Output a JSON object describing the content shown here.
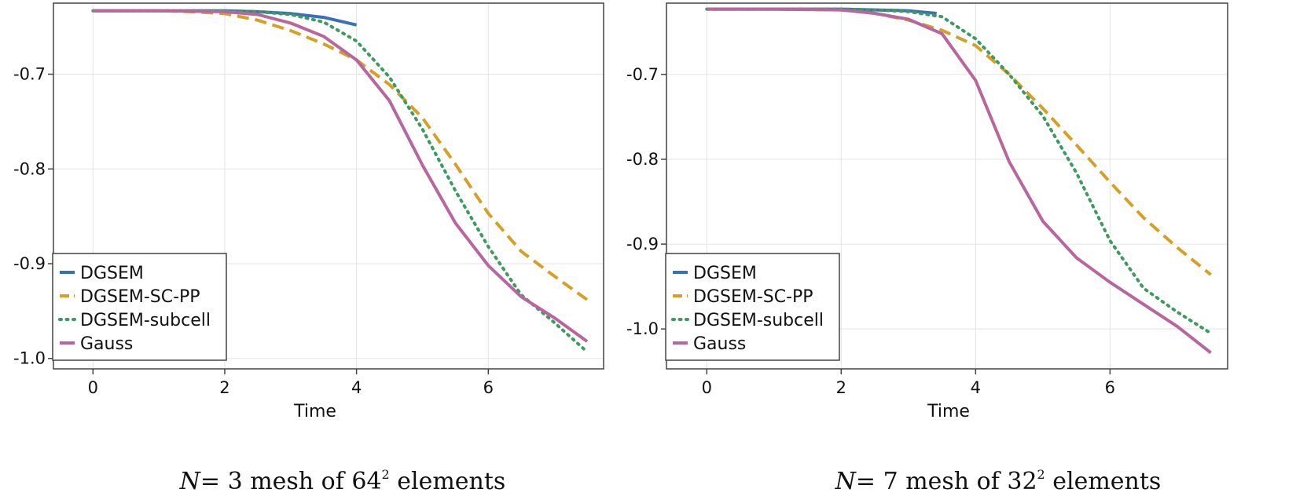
{
  "chart_data": [
    {
      "type": "line",
      "xlabel": "Time",
      "ylabel": "",
      "xlim": [
        -0.6,
        7.75
      ],
      "ylim": [
        -1.011,
        -0.625
      ],
      "xticks": [
        0,
        2,
        4,
        6
      ],
      "yticks": [
        -0.7,
        -0.8,
        -0.9,
        -1.0
      ],
      "ytick_labels": [
        "-0.7",
        "-0.8",
        "-0.9",
        "-1.0"
      ],
      "grid": true,
      "legend_position": "bottom-left",
      "caption": {
        "N": "N",
        "eq": "= 3 mesh of 64",
        "sup": "2",
        "tail": " elements"
      },
      "series": [
        {
          "name": "DGSEM",
          "color": "#3b6fb6",
          "dash": "solid",
          "x": [
            0,
            1,
            2,
            2.5,
            3,
            3.5,
            4.0
          ],
          "y": [
            -0.633,
            -0.633,
            -0.633,
            -0.634,
            -0.636,
            -0.64,
            -0.648
          ]
        },
        {
          "name": "DGSEM-SC-PP",
          "color": "#d6a025",
          "dash": "dashed",
          "x": [
            0,
            1,
            1.5,
            2,
            2.5,
            3,
            3.5,
            4,
            4.5,
            5,
            5.5,
            6,
            6.5,
            7,
            7.5
          ],
          "y": [
            -0.633,
            -0.633,
            -0.634,
            -0.636,
            -0.643,
            -0.654,
            -0.668,
            -0.685,
            -0.711,
            -0.746,
            -0.795,
            -0.847,
            -0.887,
            -0.913,
            -0.938
          ]
        },
        {
          "name": "DGSEM-subcell",
          "color": "#3f9a62",
          "dash": "dotted",
          "x": [
            0,
            1,
            2,
            2.5,
            3,
            3.5,
            4,
            4.5,
            5,
            5.5,
            6,
            6.5,
            7,
            7.5
          ],
          "y": [
            -0.633,
            -0.633,
            -0.633,
            -0.634,
            -0.637,
            -0.645,
            -0.665,
            -0.703,
            -0.758,
            -0.823,
            -0.882,
            -0.933,
            -0.962,
            -0.993
          ]
        },
        {
          "name": "Gauss",
          "color": "#b8669e",
          "dash": "solid",
          "x": [
            0,
            1,
            2,
            2.5,
            3,
            3.5,
            4,
            4.5,
            5,
            5.5,
            6,
            6.5,
            7,
            7.5
          ],
          "y": [
            -0.633,
            -0.633,
            -0.634,
            -0.637,
            -0.646,
            -0.66,
            -0.685,
            -0.728,
            -0.796,
            -0.857,
            -0.902,
            -0.935,
            -0.957,
            -0.982
          ]
        }
      ]
    },
    {
      "type": "line",
      "xlabel": "Time",
      "ylabel": "",
      "xlim": [
        -0.6,
        7.75
      ],
      "ylim": [
        -1.047,
        -0.616
      ],
      "xticks": [
        0,
        2,
        4,
        6
      ],
      "yticks": [
        -0.7,
        -0.8,
        -0.9,
        -1.0
      ],
      "ytick_labels": [
        "-0.7",
        "-0.8",
        "-0.9",
        "-1.0"
      ],
      "grid": true,
      "legend_position": "bottom-left",
      "caption": {
        "N": "N",
        "eq": "= 7 mesh of 32",
        "sup": "2",
        "tail": " elements"
      },
      "series": [
        {
          "name": "DGSEM",
          "color": "#3b6fb6",
          "dash": "solid",
          "x": [
            0,
            1,
            2,
            2.5,
            3,
            3.42
          ],
          "y": [
            -0.623,
            -0.623,
            -0.623,
            -0.624,
            -0.625,
            -0.628
          ]
        },
        {
          "name": "DGSEM-SC-PP",
          "color": "#d6a025",
          "dash": "dashed",
          "x": [
            0,
            1,
            2,
            2.5,
            3,
            3.5,
            4,
            4.5,
            5,
            5.5,
            6,
            6.5,
            7,
            7.5
          ],
          "y": [
            -0.623,
            -0.623,
            -0.624,
            -0.628,
            -0.636,
            -0.648,
            -0.666,
            -0.7,
            -0.74,
            -0.783,
            -0.827,
            -0.869,
            -0.904,
            -0.936
          ]
        },
        {
          "name": "DGSEM-subcell",
          "color": "#3f9a62",
          "dash": "dotted",
          "x": [
            0,
            1,
            2,
            2.5,
            3,
            3.5,
            4,
            4.5,
            5,
            5.5,
            6,
            6.5,
            7,
            7.5
          ],
          "y": [
            -0.623,
            -0.623,
            -0.623,
            -0.624,
            -0.626,
            -0.632,
            -0.658,
            -0.7,
            -0.749,
            -0.816,
            -0.896,
            -0.952,
            -0.98,
            -1.005
          ]
        },
        {
          "name": "Gauss",
          "color": "#b8669e",
          "dash": "solid",
          "x": [
            0,
            1,
            2,
            2.5,
            3,
            3.5,
            4,
            4.5,
            5,
            5.5,
            6,
            6.5,
            7,
            7.5
          ],
          "y": [
            -0.623,
            -0.623,
            -0.624,
            -0.628,
            -0.635,
            -0.652,
            -0.707,
            -0.803,
            -0.873,
            -0.916,
            -0.945,
            -0.971,
            -0.997,
            -1.028
          ]
        }
      ]
    }
  ]
}
